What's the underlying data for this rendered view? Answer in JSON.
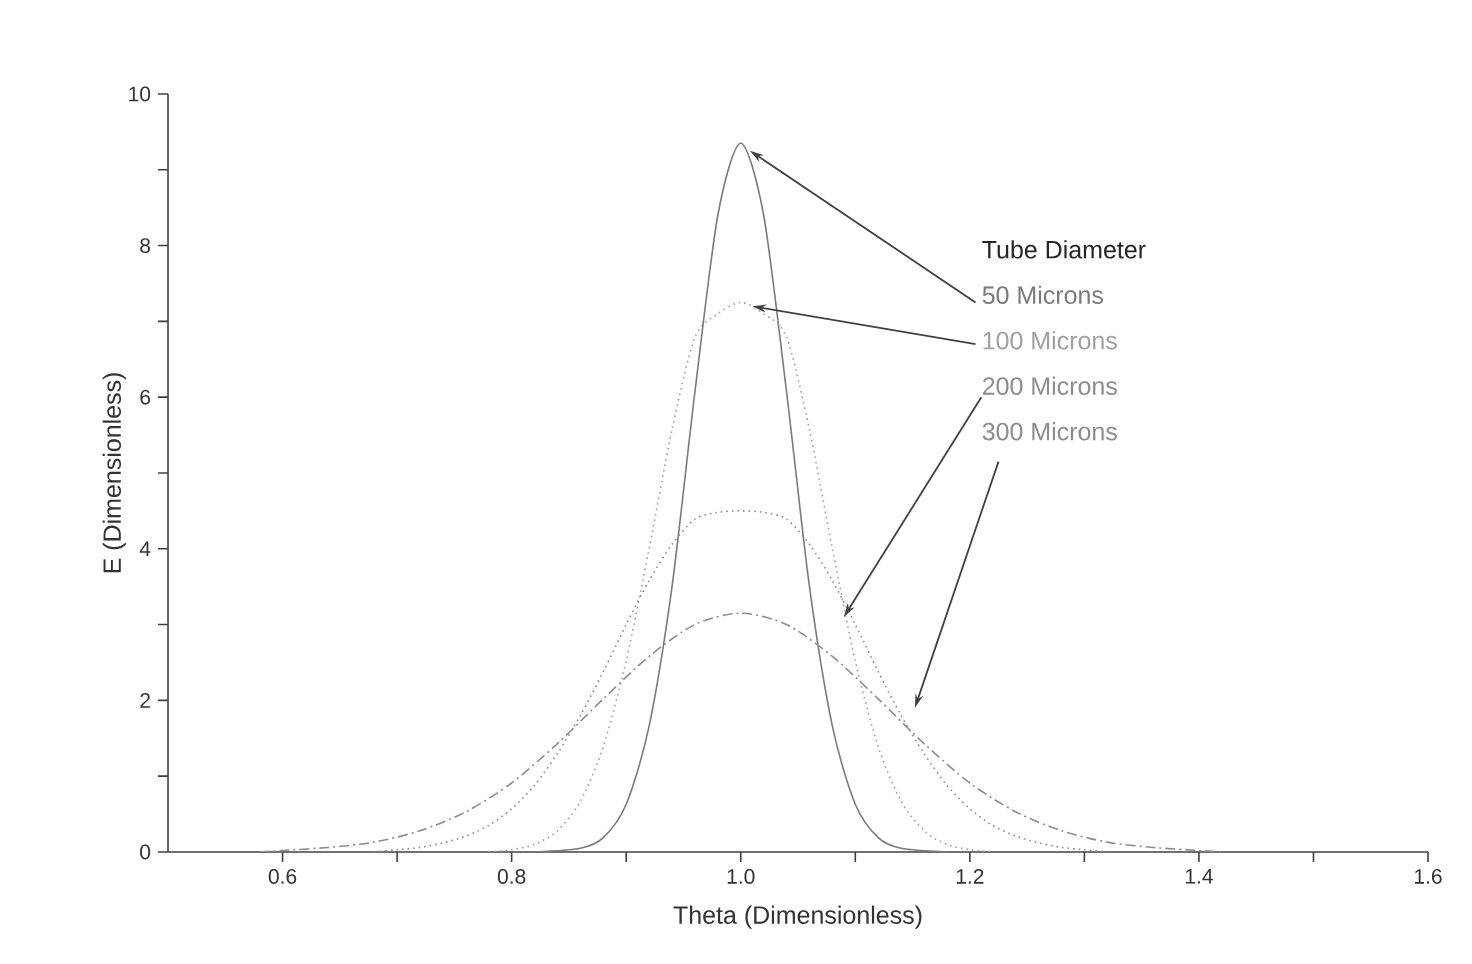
{
  "chart_data": {
    "type": "line",
    "xlabel": "Theta (Dimensionless)",
    "ylabel": "E (Dimensionless)",
    "legend_title": "Tube Diameter",
    "xlim": [
      0.5,
      1.6
    ],
    "ylim": [
      0,
      10
    ],
    "xticks": [
      0.6,
      {
        "value": 0.7,
        "label": null
      },
      0.8,
      {
        "value": 0.9,
        "label": null
      },
      {
        "value": 1.0,
        "label": "1.0"
      },
      {
        "value": 1.1,
        "label": null
      },
      1.2,
      {
        "value": 1.3,
        "label": null
      },
      1.4,
      {
        "value": 1.5,
        "label": null
      },
      1.6
    ],
    "yticks": [
      0,
      {
        "value": 1,
        "label": null
      },
      2,
      {
        "value": 3,
        "label": null
      },
      4,
      {
        "value": 5,
        "label": null
      },
      6,
      {
        "value": 7,
        "label": null
      },
      8,
      {
        "value": 9,
        "label": null
      },
      10
    ],
    "grid": false,
    "marker": "none",
    "series": [
      {
        "name": "50   Microns",
        "color": "#7a7a7a",
        "line_style": "solid",
        "x": [
          0.82,
          0.86,
          0.88,
          0.9,
          0.92,
          0.94,
          0.96,
          0.98,
          1.0,
          1.02,
          1.04,
          1.06,
          1.08,
          1.1,
          1.12,
          1.14,
          1.18
        ],
        "values": [
          0,
          0.05,
          0.19,
          0.63,
          1.66,
          3.5,
          6.07,
          8.4,
          9.35,
          8.4,
          6.07,
          3.5,
          1.66,
          0.63,
          0.19,
          0.05,
          0
        ]
      },
      {
        "name": "100 Microns",
        "color": "#a0a0a0",
        "line_style": "dotted",
        "x": [
          0.78,
          0.8,
          0.82,
          0.84,
          0.86,
          0.88,
          0.9,
          0.92,
          0.94,
          0.96,
          0.98,
          1.0,
          1.02,
          1.04,
          1.06,
          1.08,
          1.1,
          1.12,
          1.14,
          1.16,
          1.18,
          1.2,
          1.22
        ],
        "values": [
          0,
          0.03,
          0.1,
          0.28,
          0.67,
          1.39,
          2.52,
          4.0,
          5.57,
          6.79,
          7.1,
          7.25,
          7.1,
          6.79,
          5.57,
          4.0,
          2.52,
          1.39,
          0.67,
          0.28,
          0.1,
          0.03,
          0
        ]
      },
      {
        "name": "200 Microns",
        "color": "#8c8c8c",
        "line_style": "dotted",
        "x": [
          0.68,
          0.7,
          0.72,
          0.74,
          0.76,
          0.78,
          0.8,
          0.82,
          0.84,
          0.86,
          0.88,
          0.9,
          0.92,
          0.94,
          0.96,
          0.98,
          1.0,
          1.02,
          1.04,
          1.06,
          1.08,
          1.1,
          1.12,
          1.14,
          1.16,
          1.18,
          1.2,
          1.22,
          1.24,
          1.26,
          1.28,
          1.3,
          1.32
        ],
        "values": [
          0,
          0.03,
          0.06,
          0.12,
          0.21,
          0.35,
          0.57,
          0.88,
          1.3,
          1.8,
          2.38,
          3.0,
          3.58,
          4.06,
          4.39,
          4.48,
          4.5,
          4.48,
          4.39,
          4.06,
          3.58,
          3.0,
          2.38,
          1.8,
          1.3,
          0.88,
          0.57,
          0.35,
          0.21,
          0.12,
          0.06,
          0.03,
          0
        ]
      },
      {
        "name": "300 Microns",
        "color": "#8c8c8c",
        "line_style": "dashed",
        "x": [
          0.58,
          0.6,
          0.64,
          0.68,
          0.72,
          0.76,
          0.8,
          0.84,
          0.88,
          0.92,
          0.96,
          1.0,
          1.04,
          1.08,
          1.12,
          1.16,
          1.2,
          1.24,
          1.28,
          1.32,
          1.36,
          1.4,
          1.42
        ],
        "values": [
          0,
          0.02,
          0.06,
          0.13,
          0.28,
          0.53,
          0.91,
          1.43,
          2.02,
          2.58,
          3.0,
          3.15,
          3.0,
          2.58,
          2.02,
          1.43,
          0.91,
          0.53,
          0.28,
          0.13,
          0.06,
          0.02,
          0
        ]
      }
    ]
  }
}
